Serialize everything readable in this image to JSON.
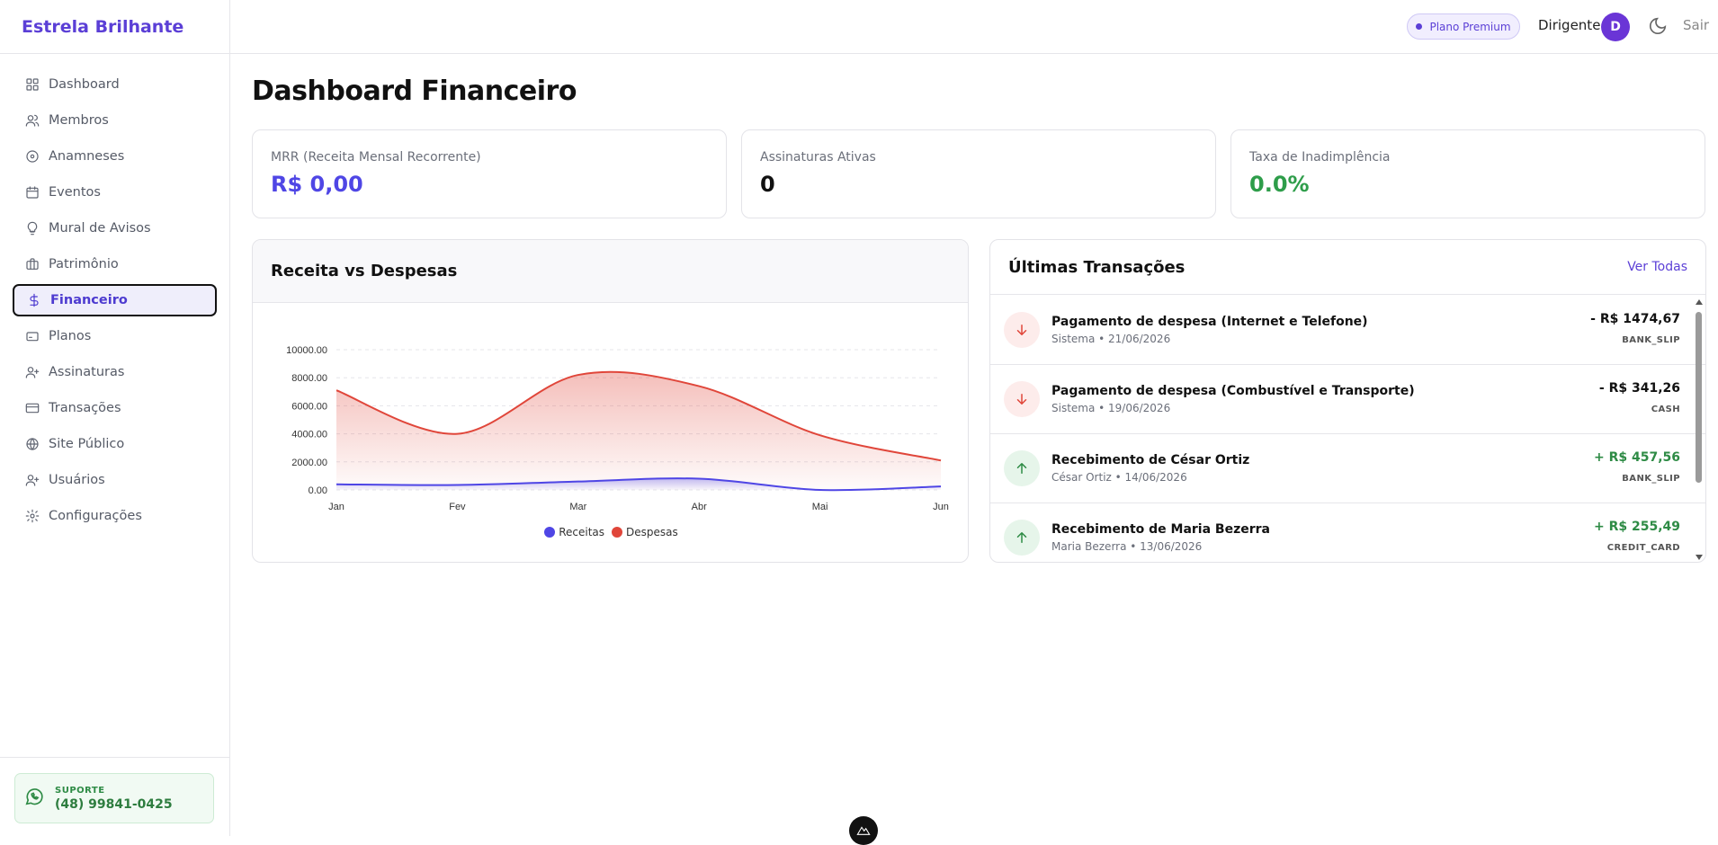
{
  "app": {
    "name": "Estrela Brilhante"
  },
  "sidebar": {
    "items": [
      {
        "label": "Dashboard",
        "icon": "grid-icon"
      },
      {
        "label": "Membros",
        "icon": "users-icon"
      },
      {
        "label": "Anamneses",
        "icon": "circle-plus-icon"
      },
      {
        "label": "Eventos",
        "icon": "calendar-icon"
      },
      {
        "label": "Mural de Avisos",
        "icon": "lightbulb-icon"
      },
      {
        "label": "Patrimônio",
        "icon": "briefcase-icon"
      },
      {
        "label": "Financeiro",
        "icon": "dollar-icon"
      },
      {
        "label": "Planos",
        "icon": "card-icon"
      },
      {
        "label": "Assinaturas",
        "icon": "user-plus-icon"
      },
      {
        "label": "Transações",
        "icon": "credit-card-icon"
      },
      {
        "label": "Site Público",
        "icon": "globe-icon"
      },
      {
        "label": "Usuários",
        "icon": "user-plus-icon"
      },
      {
        "label": "Configurações",
        "icon": "gear-icon"
      }
    ],
    "active": "Financeiro",
    "support": {
      "label": "SUPORTE",
      "phone": "(48) 99841-0425"
    }
  },
  "topbar": {
    "plan": "Plano Premium",
    "role": "Dirigente",
    "avatar": "D",
    "logout": "Sair"
  },
  "page": {
    "title": "Dashboard Financeiro"
  },
  "kpis": [
    {
      "label": "MRR (Receita Mensal Recorrente)",
      "value": "R$ 0,00",
      "color": "#4f46e5"
    },
    {
      "label": "Assinaturas Ativas",
      "value": "0",
      "color": "#111111"
    },
    {
      "label": "Taxa de Inadimplência",
      "value": "0.0%",
      "color": "#2e9d4a"
    }
  ],
  "chart_panel": {
    "title": "Receita vs Despesas"
  },
  "chart_data": {
    "type": "area",
    "categories": [
      "Jan",
      "Fev",
      "Mar",
      "Abr",
      "Mai",
      "Jun"
    ],
    "series": [
      {
        "name": "Receitas",
        "color": "#4f46e5",
        "values": [
          400,
          350,
          600,
          800,
          0,
          250
        ]
      },
      {
        "name": "Despesas",
        "color": "#e0463a",
        "values": [
          7100,
          4000,
          8200,
          7400,
          3900,
          2100
        ]
      }
    ],
    "yticks": [
      "10000.00",
      "8000.00",
      "6000.00",
      "4000.00",
      "2000.00",
      "0.00"
    ],
    "ylim": [
      0,
      10000
    ],
    "legend": "bottom",
    "grid": true
  },
  "transactions_panel": {
    "title": "Últimas Transações",
    "view_all": "Ver Todas"
  },
  "transactions": [
    {
      "type": "out",
      "desc": "Pagamento de despesa (Internet e Telefone)",
      "meta": "Sistema • 21/06/2026",
      "amount": "- R$ 1474,67",
      "method": "BANK_SLIP"
    },
    {
      "type": "out",
      "desc": "Pagamento de despesa (Combustível e Transporte)",
      "meta": "Sistema • 19/06/2026",
      "amount": "- R$ 341,26",
      "method": "CASH"
    },
    {
      "type": "in",
      "desc": "Recebimento de César Ortiz",
      "meta": "César Ortiz • 14/06/2026",
      "amount": "+ R$ 457,56",
      "method": "BANK_SLIP"
    },
    {
      "type": "in",
      "desc": "Recebimento de Maria Bezerra",
      "meta": "Maria Bezerra • 13/06/2026",
      "amount": "+ R$ 255,49",
      "method": "CREDIT_CARD"
    }
  ]
}
